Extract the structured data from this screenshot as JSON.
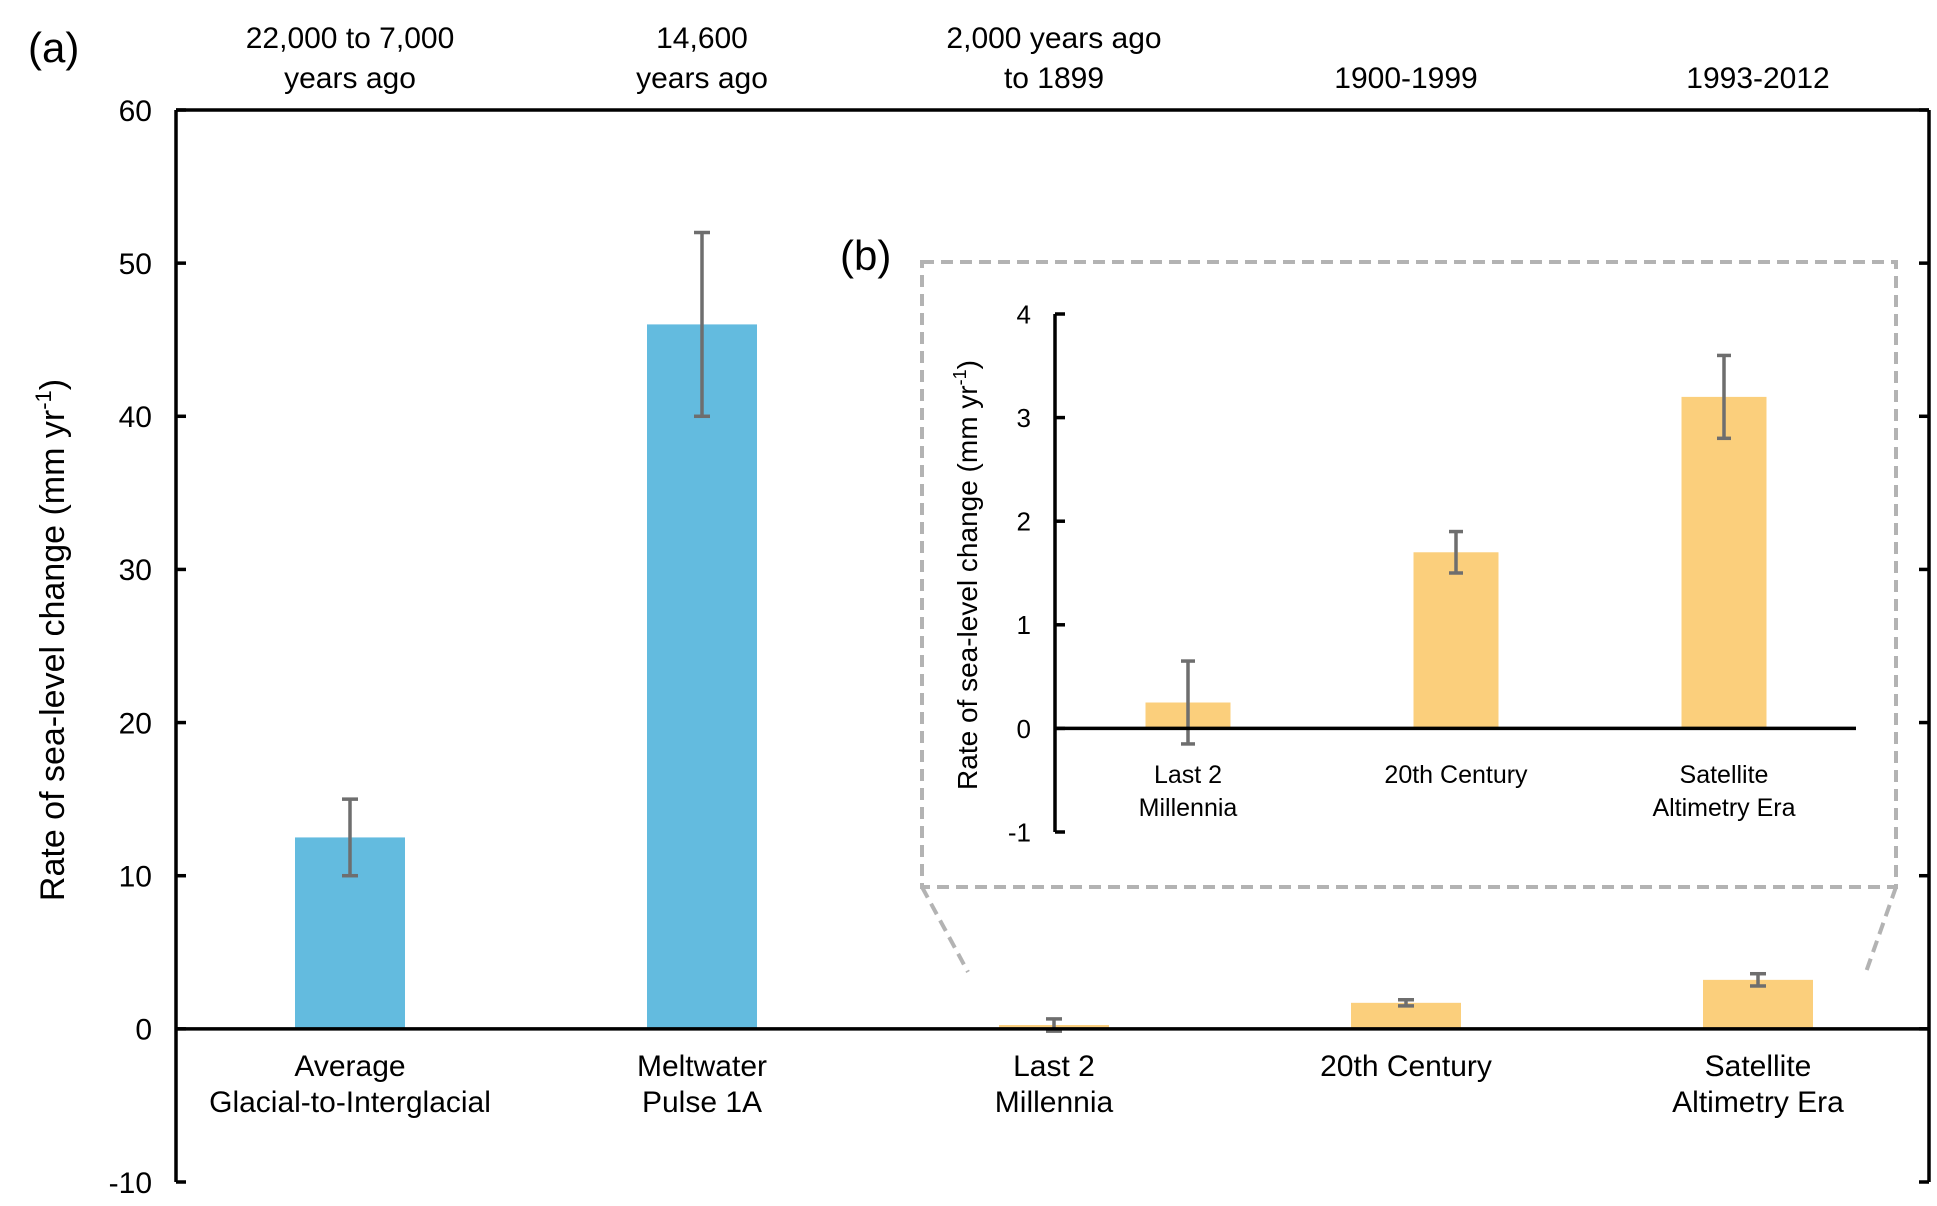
{
  "colors": {
    "paleo_bar": "#63BBDF",
    "modern_bar": "#FBCF7C",
    "error_bar": "#6E6E6E",
    "axis": "#000000",
    "inset_border": "#B3B3B3"
  },
  "chart_data": [
    {
      "id": "a",
      "panel_label": "(a)",
      "type": "bar",
      "ylabel": "Rate of sea-level change (mm yr",
      "ylabel_superscript": "-1",
      "ylabel_close": ")",
      "ylim": [
        -10,
        60
      ],
      "yticks": [
        -10,
        0,
        10,
        20,
        30,
        40,
        50,
        60
      ],
      "grid": false,
      "categories": [
        {
          "lines": [
            "Average",
            "Glacial-to-Interglacial"
          ],
          "period": [
            "22,000 to 7,000",
            "years ago"
          ],
          "value": 12.5,
          "err_low": 10,
          "err_high": 15,
          "group": "paleo"
        },
        {
          "lines": [
            "Meltwater",
            "Pulse 1A"
          ],
          "period": [
            "14,600",
            "years ago"
          ],
          "value": 46,
          "err_low": 40,
          "err_high": 52,
          "group": "paleo"
        },
        {
          "lines": [
            "Last 2",
            "Millennia"
          ],
          "period": [
            "2,000 years ago",
            "to 1899"
          ],
          "value": 0.25,
          "err_low": -0.15,
          "err_high": 0.65,
          "group": "modern"
        },
        {
          "lines": [
            "20th Century"
          ],
          "period": [
            "1900-1999"
          ],
          "value": 1.7,
          "err_low": 1.5,
          "err_high": 1.9,
          "group": "modern"
        },
        {
          "lines": [
            "Satellite",
            "Altimetry Era"
          ],
          "period": [
            "1993-2012"
          ],
          "value": 3.2,
          "err_low": 2.8,
          "err_high": 3.6,
          "group": "modern"
        }
      ]
    },
    {
      "id": "b",
      "panel_label": "(b)",
      "type": "bar",
      "ylabel": "Rate of sea-level change (mm yr",
      "ylabel_superscript": "-1",
      "ylabel_close": ")",
      "ylim": [
        -1,
        4
      ],
      "yticks": [
        -1,
        0,
        1,
        2,
        3,
        4
      ],
      "grid": false,
      "categories": [
        {
          "lines": [
            "Last 2",
            "Millennia"
          ],
          "value": 0.25,
          "err_low": -0.15,
          "err_high": 0.65,
          "group": "modern"
        },
        {
          "lines": [
            "20th Century"
          ],
          "value": 1.7,
          "err_low": 1.5,
          "err_high": 1.9,
          "group": "modern"
        },
        {
          "lines": [
            "Satellite",
            "Altimetry Era"
          ],
          "value": 3.2,
          "err_low": 2.8,
          "err_high": 3.6,
          "group": "modern"
        }
      ]
    }
  ]
}
